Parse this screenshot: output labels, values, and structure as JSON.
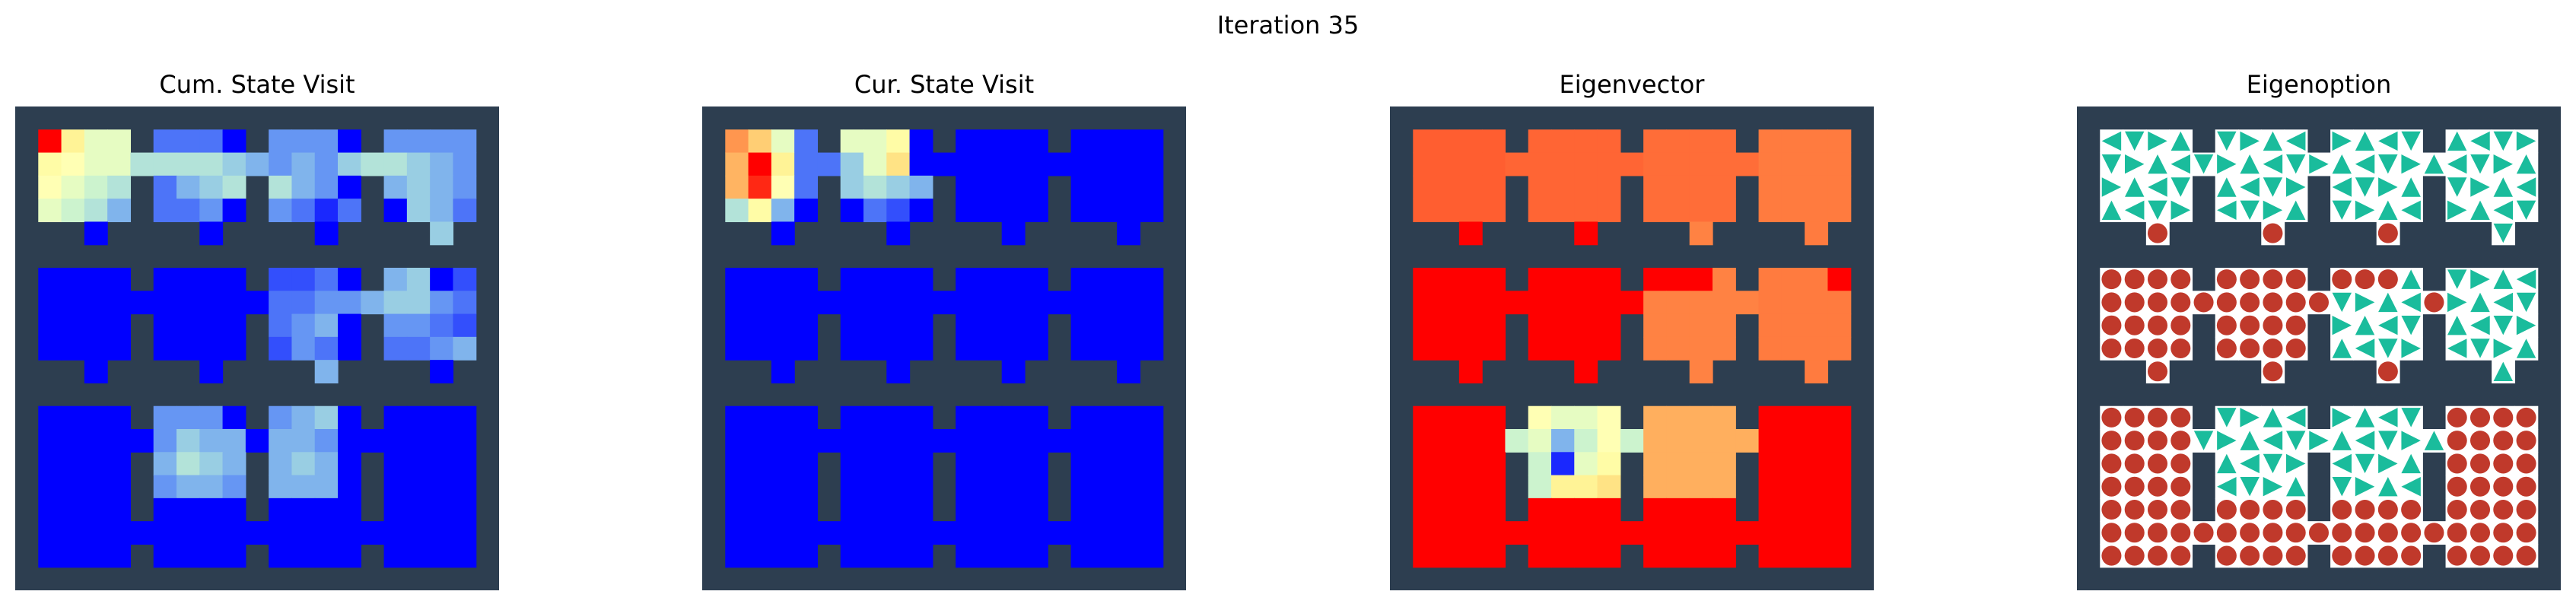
{
  "figure": {
    "title": "Iteration 35"
  },
  "colors": {
    "wall": "#2d3e50",
    "floor": "#ffffff",
    "low": "#7f00ff",
    "high": "#ff0000",
    "option_action": "#1abc9c",
    "option_terminate": "#c0392b"
  },
  "icons": {
    "action": "triangle-arrow-icon",
    "terminate": "circle-icon"
  },
  "chart_data": [
    {
      "type": "heatmap",
      "title": "Cum. State Visit",
      "colormap": "rainbow",
      "grid": false,
      "hot_cells": [
        [
          1,
          1,
          1.0
        ],
        [
          1,
          2,
          0.6
        ],
        [
          1,
          3,
          0.45
        ],
        [
          1,
          4,
          0.45
        ],
        [
          1,
          6,
          0.15
        ],
        [
          1,
          7,
          0.15
        ],
        [
          1,
          8,
          0.15
        ],
        [
          1,
          11,
          0.2
        ],
        [
          1,
          12,
          0.2
        ],
        [
          1,
          13,
          0.2
        ],
        [
          1,
          16,
          0.2
        ],
        [
          1,
          17,
          0.2
        ],
        [
          1,
          18,
          0.2
        ],
        [
          1,
          19,
          0.2
        ],
        [
          2,
          1,
          0.55
        ],
        [
          2,
          2,
          0.5
        ],
        [
          2,
          3,
          0.45
        ],
        [
          2,
          4,
          0.45
        ],
        [
          2,
          5,
          0.35
        ],
        [
          2,
          6,
          0.35
        ],
        [
          2,
          7,
          0.35
        ],
        [
          2,
          8,
          0.35
        ],
        [
          2,
          9,
          0.3
        ],
        [
          2,
          10,
          0.25
        ],
        [
          2,
          11,
          0.2
        ],
        [
          2,
          12,
          0.25
        ],
        [
          2,
          13,
          0.2
        ],
        [
          2,
          14,
          0.3
        ],
        [
          2,
          15,
          0.35
        ],
        [
          2,
          16,
          0.35
        ],
        [
          2,
          17,
          0.3
        ],
        [
          2,
          18,
          0.25
        ],
        [
          2,
          19,
          0.2
        ],
        [
          3,
          1,
          0.5
        ],
        [
          3,
          2,
          0.45
        ],
        [
          3,
          3,
          0.4
        ],
        [
          3,
          4,
          0.35
        ],
        [
          3,
          6,
          0.15
        ],
        [
          3,
          7,
          0.25
        ],
        [
          3,
          8,
          0.3
        ],
        [
          3,
          9,
          0.35
        ],
        [
          3,
          10,
          0.4
        ],
        [
          3,
          11,
          0.35
        ],
        [
          3,
          12,
          0.25
        ],
        [
          3,
          13,
          0.2
        ],
        [
          3,
          16,
          0.25
        ],
        [
          3,
          17,
          0.3
        ],
        [
          3,
          18,
          0.25
        ],
        [
          3,
          19,
          0.2
        ],
        [
          4,
          1,
          0.45
        ],
        [
          4,
          2,
          0.4
        ],
        [
          4,
          3,
          0.35
        ],
        [
          4,
          4,
          0.25
        ],
        [
          4,
          6,
          0.15
        ],
        [
          4,
          7,
          0.15
        ],
        [
          4,
          8,
          0.2
        ],
        [
          4,
          11,
          0.2
        ],
        [
          4,
          12,
          0.15
        ],
        [
          4,
          13,
          0.05
        ],
        [
          4,
          14,
          0.15
        ],
        [
          4,
          17,
          0.3
        ],
        [
          4,
          18,
          0.25
        ],
        [
          4,
          19,
          0.15
        ],
        [
          5,
          18,
          0.3
        ],
        [
          7,
          11,
          0.1
        ],
        [
          7,
          12,
          0.1
        ],
        [
          7,
          13,
          0.15
        ],
        [
          7,
          16,
          0.25
        ],
        [
          7,
          17,
          0.3
        ],
        [
          7,
          19,
          0.1
        ],
        [
          8,
          11,
          0.15
        ],
        [
          8,
          12,
          0.15
        ],
        [
          8,
          13,
          0.2
        ],
        [
          8,
          14,
          0.2
        ],
        [
          8,
          15,
          0.25
        ],
        [
          8,
          16,
          0.3
        ],
        [
          8,
          17,
          0.3
        ],
        [
          8,
          18,
          0.2
        ],
        [
          8,
          19,
          0.15
        ],
        [
          9,
          11,
          0.15
        ],
        [
          9,
          12,
          0.2
        ],
        [
          9,
          13,
          0.25
        ],
        [
          9,
          16,
          0.2
        ],
        [
          9,
          17,
          0.2
        ],
        [
          9,
          18,
          0.15
        ],
        [
          9,
          19,
          0.1
        ],
        [
          10,
          11,
          0.1
        ],
        [
          10,
          12,
          0.2
        ],
        [
          10,
          13,
          0.15
        ],
        [
          10,
          16,
          0.15
        ],
        [
          10,
          17,
          0.15
        ],
        [
          10,
          18,
          0.2
        ],
        [
          10,
          19,
          0.25
        ],
        [
          11,
          13,
          0.25
        ],
        [
          12,
          13,
          0.3
        ],
        [
          13,
          6,
          0.2
        ],
        [
          13,
          7,
          0.2
        ],
        [
          13,
          8,
          0.2
        ],
        [
          13,
          11,
          0.2
        ],
        [
          13,
          12,
          0.25
        ],
        [
          13,
          13,
          0.3
        ],
        [
          14,
          6,
          0.2
        ],
        [
          14,
          7,
          0.3
        ],
        [
          14,
          8,
          0.25
        ],
        [
          14,
          9,
          0.25
        ],
        [
          14,
          11,
          0.25
        ],
        [
          14,
          12,
          0.25
        ],
        [
          14,
          13,
          0.2
        ],
        [
          15,
          6,
          0.25
        ],
        [
          15,
          7,
          0.35
        ],
        [
          15,
          8,
          0.3
        ],
        [
          15,
          9,
          0.25
        ],
        [
          15,
          10,
          0.25
        ],
        [
          15,
          11,
          0.25
        ],
        [
          15,
          12,
          0.3
        ],
        [
          15,
          13,
          0.25
        ],
        [
          16,
          6,
          0.2
        ],
        [
          16,
          7,
          0.25
        ],
        [
          16,
          8,
          0.25
        ],
        [
          16,
          9,
          0.2
        ],
        [
          16,
          11,
          0.25
        ],
        [
          16,
          12,
          0.25
        ],
        [
          16,
          13,
          0.25
        ]
      ]
    },
    {
      "type": "heatmap",
      "title": "Cur. State Visit",
      "colormap": "rainbow",
      "grid": false,
      "hot_cells": [
        [
          1,
          1,
          0.8
        ],
        [
          1,
          2,
          0.7
        ],
        [
          1,
          3,
          0.45
        ],
        [
          1,
          4,
          0.15
        ],
        [
          1,
          6,
          0.45
        ],
        [
          1,
          7,
          0.45
        ],
        [
          1,
          8,
          0.55
        ],
        [
          2,
          1,
          0.75
        ],
        [
          2,
          2,
          1.0
        ],
        [
          2,
          3,
          0.6
        ],
        [
          2,
          4,
          0.15
        ],
        [
          2,
          5,
          0.15
        ],
        [
          2,
          6,
          0.3
        ],
        [
          2,
          7,
          0.45
        ],
        [
          2,
          8,
          0.65
        ],
        [
          3,
          1,
          0.75
        ],
        [
          3,
          2,
          0.95
        ],
        [
          3,
          3,
          0.5
        ],
        [
          3,
          4,
          0.15
        ],
        [
          3,
          6,
          0.3
        ],
        [
          3,
          7,
          0.35
        ],
        [
          3,
          8,
          0.3
        ],
        [
          3,
          9,
          0.25
        ],
        [
          3,
          10,
          0.2
        ],
        [
          4,
          1,
          0.35
        ],
        [
          4,
          2,
          0.55
        ],
        [
          4,
          3,
          0.25
        ],
        [
          4,
          7,
          0.15
        ],
        [
          4,
          8,
          0.1
        ]
      ]
    },
    {
      "type": "heatmap",
      "title": "Eigenvector",
      "colormap": "rainbow",
      "grid": false,
      "room_values": [
        [
          0.88,
          0.87,
          0.86,
          0.84
        ],
        [
          1.0,
          1.0,
          0.83,
          0.84
        ],
        [
          1.0,
          0.4,
          0.76,
          1.0
        ],
        [
          1.0,
          1.0,
          1.0,
          1.0
        ]
      ],
      "hot_cells": [
        [
          7,
          11,
          1.0
        ],
        [
          7,
          12,
          1.0
        ],
        [
          7,
          13,
          1.0
        ],
        [
          7,
          19,
          1.0
        ],
        [
          13,
          6,
          0.5
        ],
        [
          13,
          7,
          0.45
        ],
        [
          13,
          8,
          0.45
        ],
        [
          13,
          9,
          0.5
        ],
        [
          14,
          6,
          0.45
        ],
        [
          14,
          7,
          0.25
        ],
        [
          14,
          8,
          0.4
        ],
        [
          14,
          9,
          0.5
        ],
        [
          15,
          6,
          0.4
        ],
        [
          15,
          7,
          0.05
        ],
        [
          15,
          8,
          0.45
        ],
        [
          15,
          9,
          0.55
        ],
        [
          16,
          6,
          0.4
        ],
        [
          16,
          7,
          0.6
        ],
        [
          16,
          8,
          0.6
        ],
        [
          16,
          9,
          0.65
        ]
      ]
    },
    {
      "type": "table",
      "title": "Eigenoption",
      "legend": {
        "triangle": "action",
        "circle": "terminate"
      },
      "room_policy": [
        [
          "action",
          "action",
          "action",
          "action"
        ],
        [
          "terminate",
          "terminate",
          "mixed",
          "action"
        ],
        [
          "terminate",
          "action",
          "action",
          "terminate"
        ],
        [
          "terminate",
          "terminate",
          "terminate",
          "terminate"
        ]
      ]
    }
  ]
}
